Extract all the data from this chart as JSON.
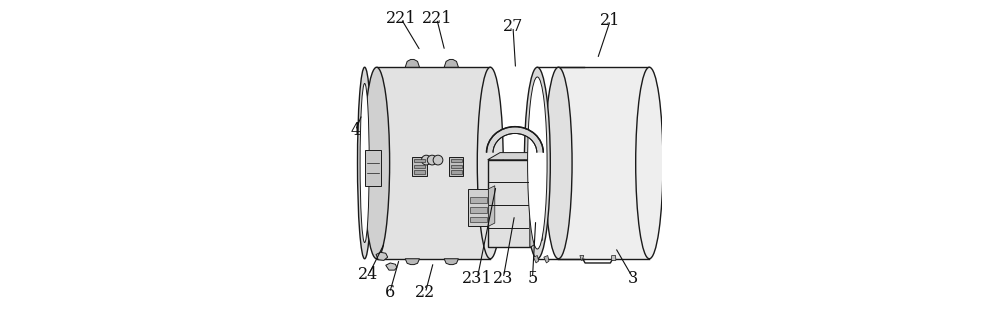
{
  "background_color": "#ffffff",
  "figure_width": 10.0,
  "figure_height": 3.26,
  "dpi": 100,
  "line_color": "#1a1a1a",
  "annotation_color": "#111111",
  "body_color": "#e8e8e8",
  "dark_color": "#b0b0b0",
  "labels_info": {
    "4": {
      "text": "4",
      "lpos": [
        0.055,
        0.6
      ],
      "ppos": [
        0.075,
        0.65
      ]
    },
    "221a": {
      "text": "221",
      "lpos": [
        0.195,
        0.945
      ],
      "ppos": [
        0.255,
        0.845
      ]
    },
    "221b": {
      "text": "221",
      "lpos": [
        0.305,
        0.945
      ],
      "ppos": [
        0.33,
        0.845
      ]
    },
    "24": {
      "text": "24",
      "lpos": [
        0.095,
        0.155
      ],
      "ppos": [
        0.145,
        0.255
      ]
    },
    "6": {
      "text": "6",
      "lpos": [
        0.16,
        0.1
      ],
      "ppos": [
        0.19,
        0.205
      ]
    },
    "22": {
      "text": "22",
      "lpos": [
        0.27,
        0.1
      ],
      "ppos": [
        0.295,
        0.195
      ]
    },
    "27": {
      "text": "27",
      "lpos": [
        0.54,
        0.92
      ],
      "ppos": [
        0.548,
        0.79
      ]
    },
    "231": {
      "text": "231",
      "lpos": [
        0.43,
        0.145
      ],
      "ppos": [
        0.488,
        0.43
      ]
    },
    "23": {
      "text": "23",
      "lpos": [
        0.51,
        0.145
      ],
      "ppos": [
        0.545,
        0.34
      ]
    },
    "5": {
      "text": "5",
      "lpos": [
        0.6,
        0.145
      ],
      "ppos": [
        0.61,
        0.325
      ]
    },
    "21": {
      "text": "21",
      "lpos": [
        0.84,
        0.94
      ],
      "ppos": [
        0.8,
        0.82
      ]
    },
    "3": {
      "text": "3",
      "lpos": [
        0.91,
        0.145
      ],
      "ppos": [
        0.855,
        0.24
      ]
    }
  }
}
